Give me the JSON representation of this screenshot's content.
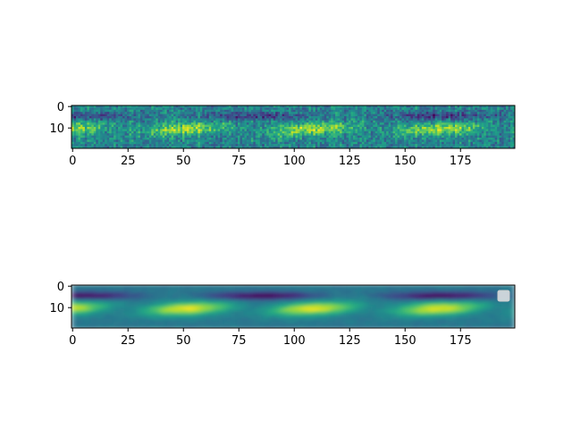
{
  "chart_data": [
    {
      "type": "heatmap",
      "title": "",
      "xlabel": "",
      "ylabel": "",
      "rows": 20,
      "cols": 200,
      "colormap": "viridis",
      "xlim": [
        0,
        199
      ],
      "ylim": [
        19,
        0
      ],
      "x_ticks": [
        "0",
        "25",
        "50",
        "75",
        "100",
        "125",
        "150",
        "175"
      ],
      "y_ticks": [
        "0",
        "10"
      ],
      "legend": null,
      "grid": false
    },
    {
      "type": "heatmap",
      "title": "",
      "xlabel": "",
      "ylabel": "",
      "rows": 20,
      "cols": 200,
      "colormap": "viridis",
      "interpolation": "smooth",
      "xlim": [
        0,
        199
      ],
      "ylim": [
        19,
        0
      ],
      "x_ticks": [
        "0",
        "25",
        "50",
        "75",
        "100",
        "125",
        "150",
        "175"
      ],
      "y_ticks": [
        "0",
        "10"
      ],
      "legend": {
        "placement": "upper right",
        "entries": []
      },
      "grid": false
    }
  ]
}
